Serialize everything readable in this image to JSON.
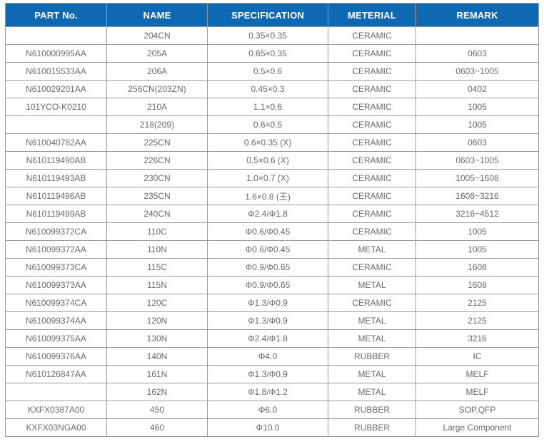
{
  "colors": {
    "header_bg": "#0e69b2",
    "header_text": "#ffffff",
    "border": "#9a9a9a",
    "body_text": "#6b6b6b",
    "page_bg": "#ffffff"
  },
  "table": {
    "columns": [
      "PART No.",
      "NAME",
      "SPECIFICATION",
      "METERIAL",
      "REMARK"
    ],
    "rows": [
      [
        "",
        "204CN",
        "0.35×0.35",
        "CERAMIC",
        ""
      ],
      [
        "N610000995AA",
        "205A",
        "0.65×0.35",
        "CERAMIC",
        "0603"
      ],
      [
        "N610015533AA",
        "206A",
        "0.5×0.6",
        "CERAMIC",
        "0603~1005"
      ],
      [
        "N610029201AA",
        "256CN(203ZN)",
        "0.45×0.3",
        "CERAMIC",
        "0402"
      ],
      [
        "101YCO-K0210",
        "210A",
        "1.1×0.6",
        "CERAMIC",
        "1005"
      ],
      [
        "",
        "218(209)",
        "0.6×0.5",
        "CERAMIC",
        "1005"
      ],
      [
        "N610040782AA",
        "225CN",
        "0.6×0.35 (X)",
        "CERAMIC",
        "0603"
      ],
      [
        "N610119490AB",
        "226CN",
        "0.5×0.6 (X)",
        "CERAMIC",
        "0603~1005"
      ],
      [
        "N610119493AB",
        "230CN",
        "1.0×0.7 (X)",
        "CERAMIC",
        "1005~1608"
      ],
      [
        "N610119496AB",
        "235CN",
        "1.6×0.8 (王)",
        "CERAMIC",
        "1608~3216"
      ],
      [
        "N610119499AB",
        "240CN",
        "Φ2.4/Φ1.8",
        "CERAMIC",
        "3216~4512"
      ],
      [
        "N610099372CA",
        "110C",
        "Φ0.6/Φ0.45",
        "CERAMIC",
        "1005"
      ],
      [
        "N610099372AA",
        "110N",
        "Φ0.6/Φ0.45",
        "METAL",
        "1005"
      ],
      [
        "N610099373CA",
        "115C",
        "Φ0.9/Φ0.65",
        "CERAMIC",
        "1608"
      ],
      [
        "N610099373AA",
        "115N",
        "Φ0.9/Φ0.65",
        "METAL",
        "1608"
      ],
      [
        "N610099374CA",
        "120C",
        "Φ1.3/Φ0.9",
        "CERAMIC",
        "2125"
      ],
      [
        "N610099374AA",
        "120N",
        "Φ1.3/Φ0.9",
        "METAL",
        "2125"
      ],
      [
        "N610099375AA",
        "130N",
        "Φ2.4/Φ1.8",
        "METAL",
        "3216"
      ],
      [
        "N610099376AA",
        "140N",
        "Φ4.0",
        "RUBBER",
        "IC"
      ],
      [
        "N610126847AA",
        "161N",
        "Φ1.3/Φ0.9",
        "METAL",
        "MELF"
      ],
      [
        "",
        "162N",
        "Φ1.8/Φ1.2",
        "METAL",
        "MELF"
      ],
      [
        "KXFX0387A00",
        "450",
        "Φ6.0",
        "RUBBER",
        "SOP,QFP"
      ],
      [
        "KXFX03NGA00",
        "460",
        "Φ10.0",
        "RUBBER",
        "Large Component"
      ]
    ]
  }
}
